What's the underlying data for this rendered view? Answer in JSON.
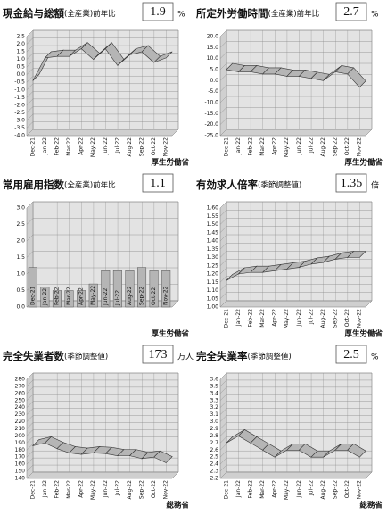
{
  "chart_data": [
    {
      "type": "line",
      "title": "現金給与総額",
      "subtitle": "(全産業)前年比",
      "value": 1.9,
      "unit": "%",
      "color": "#b5b5b5",
      "categories": [
        "Dec-21",
        "Jan-22",
        "Feb-22",
        "Mar-22",
        "Apr-22",
        "May-22",
        "Jun-22",
        "Jul-22",
        "Aug-22",
        "Sep-22",
        "Oct-22",
        "Nov-22"
      ],
      "values": [
        -0.4,
        1.1,
        1.2,
        1.2,
        1.7,
        1.0,
        1.7,
        0.6,
        1.3,
        1.5,
        0.8,
        1.1
      ],
      "ylim": [
        -4,
        2.5
      ],
      "yticks": [
        2.5,
        {
          "value": 2,
          "label": "2.0"
        },
        1.5,
        {
          "value": 1,
          "label": "1.0"
        },
        0.5,
        {
          "value": 0,
          "label": "0.0"
        },
        -0.5,
        {
          "value": -1,
          "label": "-1.0"
        },
        -1.5,
        {
          "value": -2,
          "label": "-2.0"
        },
        -2.5,
        {
          "value": -3,
          "label": "-3.0"
        },
        -3.5,
        {
          "value": -4,
          "label": "-4.0"
        }
      ],
      "source": "厚生労働省"
    },
    {
      "type": "line",
      "title": "所定外労働時間",
      "subtitle": "(全産業)前年比",
      "value": 2.7,
      "unit": "%",
      "color": "#b5b5b5",
      "categories": [
        "Dec-21",
        "Jan-22",
        "Feb-22",
        "Mar-22",
        "Apr-22",
        "May-22",
        "Jun-22",
        "Jul-22",
        "Aug-22",
        "Sep-22",
        "Oct-22",
        "Nov-22"
      ],
      "values": [
        5,
        4,
        4,
        3,
        3,
        2,
        2,
        1,
        0,
        4,
        3,
        -3
      ],
      "ylim": [
        -25,
        20
      ],
      "yticks": [
        {
          "value": 20,
          "label": "20.0"
        },
        {
          "value": 15,
          "label": "15.0"
        },
        {
          "value": 10,
          "label": "10.0"
        },
        {
          "value": 5,
          "label": "5.0"
        },
        {
          "value": 0,
          "label": "0.0"
        },
        {
          "value": -5,
          "label": "-5.0"
        },
        {
          "value": -10,
          "label": "-10.0"
        },
        {
          "value": -15,
          "label": "-15.0"
        },
        {
          "value": -20,
          "label": "-20.0"
        },
        {
          "value": -25,
          "label": "-25.0"
        }
      ],
      "source": "厚生労働省"
    },
    {
      "type": "bar",
      "title": "常用雇用指数",
      "subtitle": "(全産業)前年比",
      "value": 1.1,
      "color": "#b5b5b5",
      "categories": [
        "Dec-21",
        "Jan-22",
        "Feb-22",
        "Mar-22",
        "Apr-22",
        "May-22",
        "Jun-22",
        "Jul-22",
        "Aug-22",
        "Sep-22",
        "Oct-22",
        "Nov-22"
      ],
      "values": [
        1.2,
        0.6,
        0.5,
        0.5,
        0.5,
        0.7,
        1.1,
        1.1,
        1.1,
        1.2,
        1.1,
        1.1
      ],
      "ylim": [
        0,
        3
      ],
      "yticks": [
        {
          "value": 3,
          "label": "3.0"
        },
        2.5,
        {
          "value": 2,
          "label": "2.0"
        },
        1.5,
        {
          "value": 1,
          "label": "1.0"
        },
        0.5,
        {
          "value": 0,
          "label": "0.0"
        }
      ],
      "source": "厚生労働省"
    },
    {
      "type": "line",
      "title": "有効求人倍率",
      "subtitle": "(季節調整値)",
      "value": 1.35,
      "unit": "倍",
      "color": "#b5b5b5",
      "categories": [
        "Dec-21",
        "Jan-22",
        "Feb-22",
        "Mar-22",
        "Apr-22",
        "May-22",
        "Jun-22",
        "Jul-22",
        "Aug-22",
        "Sep-22",
        "Oct-22",
        "Nov-22"
      ],
      "values": [
        1.16,
        1.2,
        1.21,
        1.21,
        1.22,
        1.23,
        1.24,
        1.26,
        1.27,
        1.29,
        1.3,
        1.3
      ],
      "ylim": [
        1,
        1.6
      ],
      "yticks": [
        {
          "value": 1.6,
          "label": "1.60"
        },
        1.55,
        {
          "value": 1.5,
          "label": "1.50"
        },
        1.45,
        {
          "value": 1.4,
          "label": "1.40"
        },
        1.35,
        {
          "value": 1.3,
          "label": "1.30"
        },
        1.25,
        {
          "value": 1.2,
          "label": "1.20"
        },
        1.15,
        {
          "value": 1.1,
          "label": "1.10"
        },
        1.05,
        {
          "value": 1,
          "label": "1.00"
        }
      ],
      "source": "厚生労働省"
    },
    {
      "type": "line",
      "title": "完全失業者数",
      "subtitle": "(季節調整値)",
      "value": 173,
      "unit": "万人",
      "color": "#b5b5b5",
      "categories": [
        "Dec-21",
        "Jan-22",
        "Feb-22",
        "Mar-22",
        "Apr-22",
        "May-22",
        "Jun-22",
        "Jul-22",
        "Aug-22",
        "Sep-22",
        "Oct-22",
        "Nov-22"
      ],
      "values": [
        186,
        190,
        182,
        176,
        174,
        176,
        175,
        172,
        172,
        168,
        170,
        162
      ],
      "ylim": [
        140,
        280
      ],
      "yticks": [
        280,
        270,
        260,
        250,
        240,
        230,
        220,
        210,
        200,
        190,
        180,
        170,
        160,
        150,
        140
      ],
      "source": "総務省"
    },
    {
      "type": "line",
      "title": "完全失業率",
      "subtitle": "(季節調整値)",
      "value": 2.5,
      "unit": "%",
      "color": "#b5b5b5",
      "categories": [
        "Dec-21",
        "Jan-22",
        "Feb-22",
        "Mar-22",
        "Apr-22",
        "May-22",
        "Jun-22",
        "Jul-22",
        "Aug-22",
        "Sep-22",
        "Oct-22",
        "Nov-22"
      ],
      "values": [
        2.7,
        2.8,
        2.7,
        2.6,
        2.5,
        2.6,
        2.6,
        2.5,
        2.5,
        2.6,
        2.6,
        2.5
      ],
      "ylim": [
        2.2,
        3.6
      ],
      "yticks": [
        3.6,
        3.5,
        3.4,
        3.3,
        3.2,
        3.1,
        {
          "value": 3,
          "label": "3.0"
        },
        2.9,
        2.8,
        2.7,
        2.6,
        2.5,
        2.4,
        2.3,
        2.2
      ],
      "source": "総務省"
    }
  ]
}
